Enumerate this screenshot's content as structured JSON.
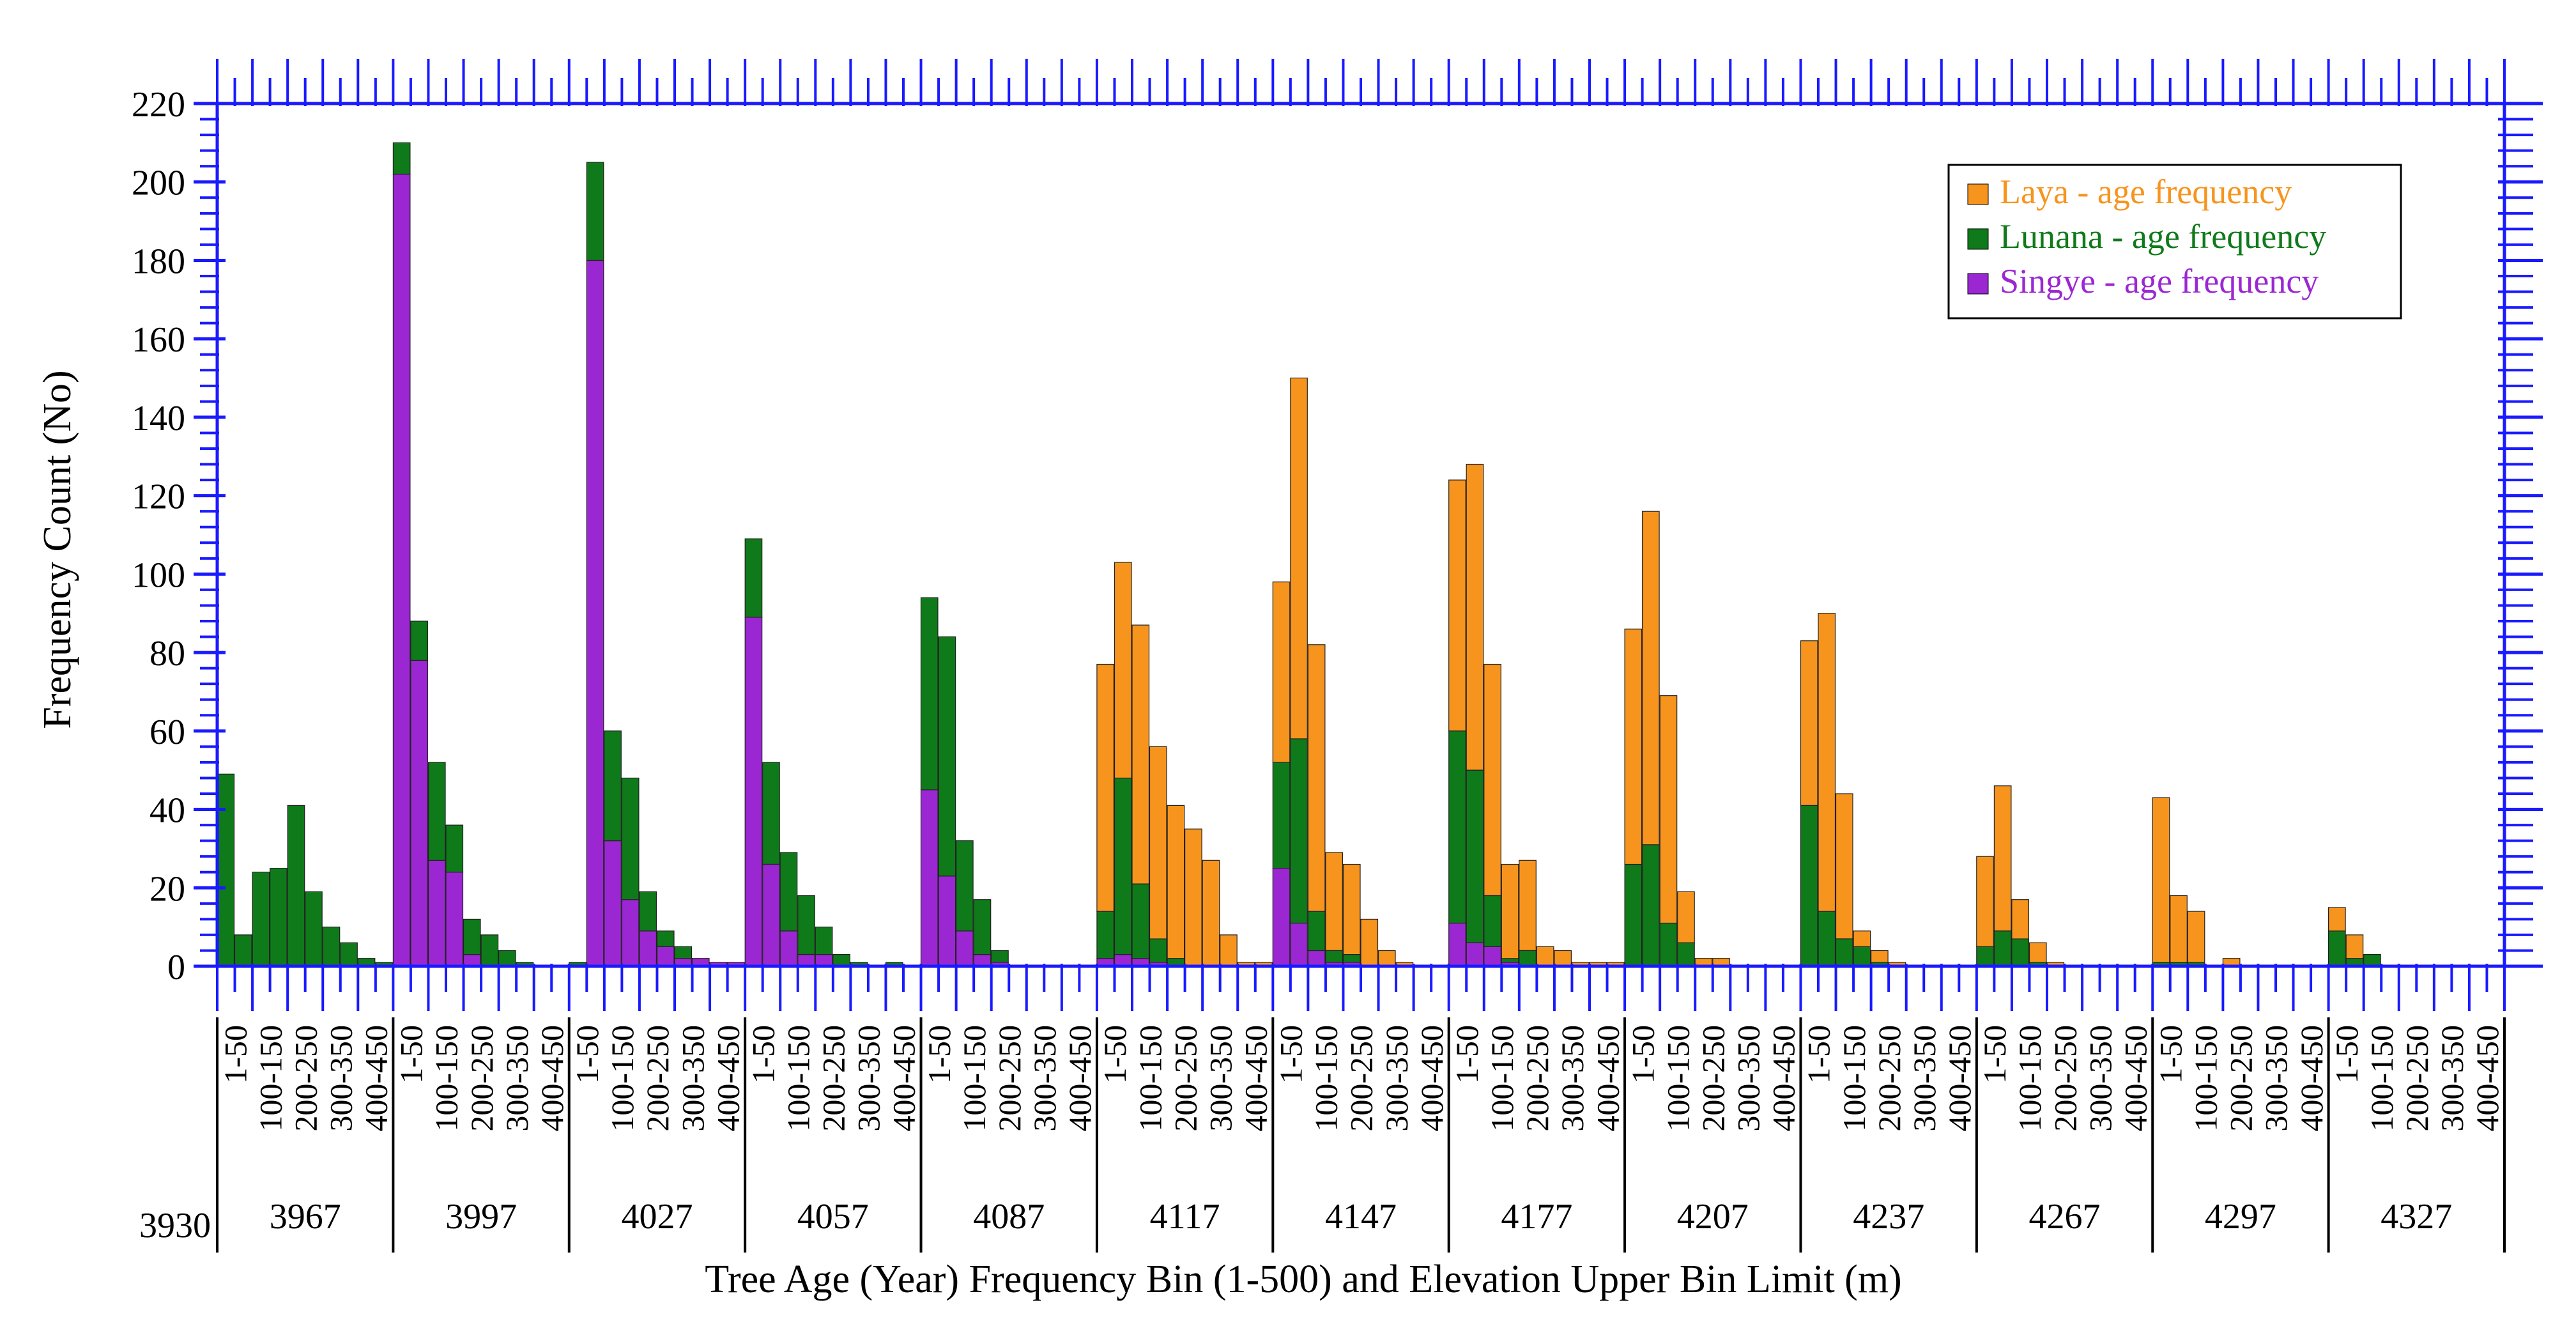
{
  "chart_data": {
    "type": "bar",
    "title": "",
    "xlabel": "Tree Age (Year) Frequency Bin (1-500) and Elevation Upper Bin Limit (m)",
    "ylabel": "Frequency Count (No)",
    "ylim": [
      0,
      220
    ],
    "yticks": [
      "0",
      "20",
      "40",
      "60",
      "80",
      "100",
      "120",
      "140",
      "160",
      "180",
      "200",
      "220"
    ],
    "stacked": true,
    "grid": false,
    "legend_position": "top-right",
    "colors": {
      "Laya": "#f7941d",
      "Lunana": "#0f7a1a",
      "Singye": "#9b27d3",
      "axis": "#1a1aff"
    },
    "age_bin_labels": [
      "1-50",
      "100-150",
      "200-250",
      "300-350",
      "400-450"
    ],
    "elevation_start_label": "3930",
    "elevation_groups": [
      "3967",
      "3997",
      "4027",
      "4057",
      "4087",
      "4117",
      "4147",
      "4177",
      "4207",
      "4237",
      "4267",
      "4297",
      "4327"
    ],
    "series": [
      {
        "name": "Singye - age frequency",
        "key": "Singye",
        "values": [
          [
            0,
            0,
            0,
            0,
            0,
            0,
            0,
            0,
            0,
            0
          ],
          [
            202,
            78,
            27,
            24,
            3,
            0,
            0,
            0,
            0,
            0
          ],
          [
            0,
            180,
            32,
            17,
            9,
            5,
            2,
            2,
            1,
            1
          ],
          [
            89,
            26,
            9,
            3,
            3,
            0,
            0,
            0,
            0,
            0
          ],
          [
            45,
            23,
            9,
            3,
            1,
            0,
            0,
            0,
            0,
            0
          ],
          [
            2,
            3,
            2,
            1,
            0,
            0,
            0,
            0,
            0,
            0
          ],
          [
            25,
            11,
            4,
            1,
            1,
            0,
            0,
            0,
            0,
            0
          ],
          [
            11,
            6,
            5,
            1,
            0,
            0,
            0,
            0,
            0,
            0
          ],
          [
            0,
            0,
            0,
            0,
            0,
            0,
            0,
            0,
            0,
            0
          ],
          [
            0,
            0,
            0,
            0,
            0,
            0,
            0,
            0,
            0,
            0
          ],
          [
            0,
            0,
            0,
            0,
            0,
            0,
            0,
            0,
            0,
            0
          ],
          [
            0,
            0,
            0,
            0,
            0,
            0,
            0,
            0,
            0,
            0
          ],
          [
            0,
            0,
            0,
            0,
            0,
            0,
            0,
            0,
            0,
            0
          ]
        ]
      },
      {
        "name": "Lunana - age frequency",
        "key": "Lunana",
        "values": [
          [
            49,
            8,
            24,
            25,
            41,
            19,
            10,
            6,
            2,
            1
          ],
          [
            8,
            10,
            25,
            12,
            9,
            8,
            4,
            1,
            0,
            0
          ],
          [
            1,
            25,
            28,
            31,
            10,
            4,
            3,
            0,
            0,
            0
          ],
          [
            20,
            26,
            20,
            15,
            7,
            3,
            1,
            0,
            1,
            0
          ],
          [
            49,
            61,
            23,
            14,
            3,
            0,
            0,
            0,
            0,
            0
          ],
          [
            12,
            45,
            19,
            6,
            2,
            0,
            0,
            0,
            0,
            0
          ],
          [
            27,
            47,
            10,
            3,
            2,
            0,
            0,
            0,
            0,
            0
          ],
          [
            49,
            44,
            13,
            1,
            4,
            0,
            0,
            0,
            0,
            0
          ],
          [
            26,
            31,
            11,
            6,
            0,
            0,
            0,
            0,
            0,
            0
          ],
          [
            41,
            14,
            7,
            5,
            1,
            0,
            0,
            0,
            0,
            0
          ],
          [
            5,
            9,
            7,
            1,
            0,
            0,
            0,
            0,
            0,
            0
          ],
          [
            1,
            1,
            1,
            0,
            0,
            0,
            0,
            0,
            0,
            0
          ],
          [
            9,
            2,
            3,
            0,
            0,
            0,
            0,
            0,
            0,
            0
          ]
        ]
      },
      {
        "name": "Laya - age frequency",
        "key": "Laya",
        "values": [
          [
            0,
            0,
            0,
            0,
            0,
            0,
            0,
            0,
            0,
            0
          ],
          [
            0,
            0,
            0,
            0,
            0,
            0,
            0,
            0,
            0,
            0
          ],
          [
            0,
            0,
            0,
            0,
            0,
            0,
            0,
            0,
            0,
            0
          ],
          [
            0,
            0,
            0,
            0,
            0,
            0,
            0,
            0,
            0,
            0
          ],
          [
            0,
            0,
            0,
            0,
            0,
            0,
            0,
            0,
            0,
            0
          ],
          [
            63,
            55,
            66,
            49,
            39,
            35,
            27,
            8,
            1,
            1
          ],
          [
            46,
            92,
            68,
            25,
            23,
            12,
            4,
            1,
            0,
            0
          ],
          [
            64,
            78,
            59,
            24,
            23,
            5,
            4,
            1,
            1,
            1
          ],
          [
            60,
            85,
            58,
            13,
            2,
            2,
            0,
            0,
            0,
            0
          ],
          [
            42,
            76,
            37,
            4,
            3,
            1,
            0,
            0,
            0,
            0
          ],
          [
            23,
            37,
            10,
            5,
            1,
            0,
            0,
            0,
            0,
            0
          ],
          [
            42,
            17,
            13,
            0,
            2,
            0,
            0,
            0,
            0,
            0
          ],
          [
            6,
            6,
            0,
            0,
            0,
            0,
            0,
            0,
            0,
            0
          ]
        ]
      }
    ]
  }
}
